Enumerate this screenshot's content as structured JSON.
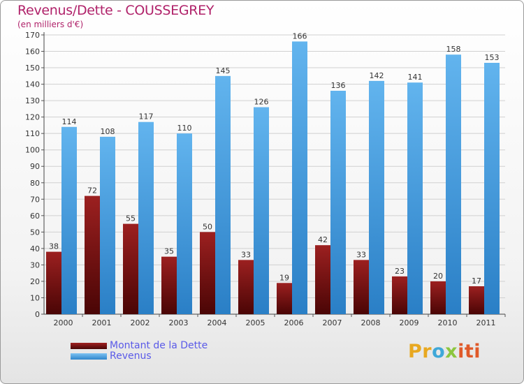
{
  "chart_data": {
    "type": "bar",
    "title": "Revenus/Dette - COUSSEGREY",
    "subtitle": "(en milliers d'€)",
    "xlabel": "",
    "ylabel": "",
    "ylim": [
      0,
      170
    ],
    "yticks": [
      0,
      10,
      20,
      30,
      40,
      50,
      60,
      70,
      80,
      90,
      100,
      110,
      120,
      130,
      140,
      150,
      160,
      170
    ],
    "grid": true,
    "categories": [
      "2000",
      "2001",
      "2002",
      "2003",
      "2004",
      "2005",
      "2006",
      "2007",
      "2008",
      "2009",
      "2010",
      "2011"
    ],
    "series": [
      {
        "name": "Montant de la Dette",
        "color": "#7a1010",
        "values": [
          38,
          72,
          55,
          35,
          50,
          33,
          19,
          42,
          33,
          23,
          20,
          17
        ]
      },
      {
        "name": "Revenus",
        "color": "#4fa6e6",
        "values": [
          114,
          108,
          117,
          110,
          145,
          126,
          166,
          136,
          142,
          141,
          158,
          153
        ]
      }
    ],
    "legend_position": "bottom-left"
  },
  "legend": {
    "debt_label": "Montant de la Dette",
    "revenue_label": "Revenus"
  },
  "logo": {
    "part1": "Pr",
    "part2": "o",
    "part3": "x",
    "part4": "iti"
  }
}
